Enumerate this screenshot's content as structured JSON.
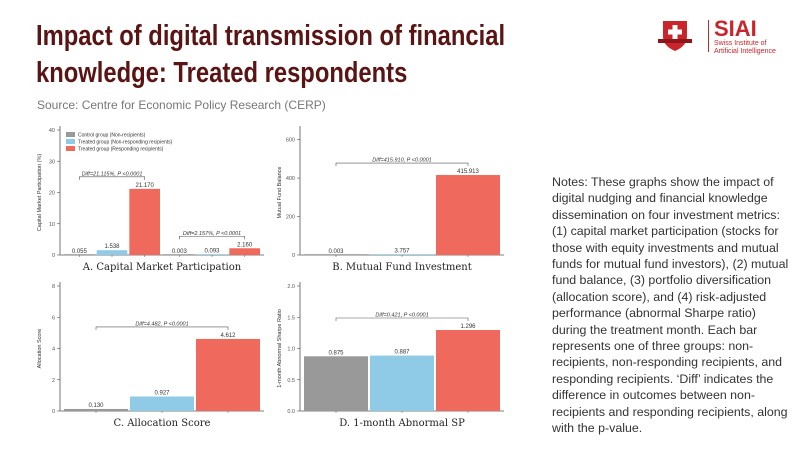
{
  "header": {
    "title": "Impact of digital transmission of financial knowledge: Treated respondents",
    "source": "Source: Centre for Economic Policy Research (CERP)"
  },
  "logo": {
    "brand": "SIAI",
    "subtitle": "Swiss Institute of Artificial Intelligence",
    "color": "#c9252b"
  },
  "notes": "Notes: These graphs show the impact of digital nudging and financial knowledge dissemination on four investment metrics: (1) capital market participation (stocks for those with equity investments and mutual funds for mutual fund investors), (2) mutual fund balance, (3) portfolio diversification (allocation score), and (4) risk-adjusted performance (abnormal Sharpe ratio) during the treatment month. Each bar represents one of three groups: non-recipients, non-responding recipients, and responding recipients. ‘Diff’ indicates the difference in outcomes between non-recipients and responding recipients, along with the p-value.",
  "colors": {
    "control": "#999999",
    "nonresponding": "#8fcbe6",
    "responding": "#ef6a5c",
    "title": "#5a1414"
  },
  "legend": [
    "Control group (Non-recipients)",
    "Treated group (Non-responding recipients)",
    "Treated group (Responding recipients)"
  ],
  "chart_data": [
    {
      "type": "bar",
      "title": "A. Capital Market Participation",
      "ylabel": "Capital Market Participation (%)",
      "ylim": [
        0,
        40
      ],
      "yticks": [
        "0",
        "10",
        "20",
        "30",
        "40"
      ],
      "legend": "top-left",
      "groups": [
        {
          "values": [
            0.055,
            1.538,
            21.17
          ],
          "labels": [
            "0.055",
            "1.538",
            "21.170"
          ],
          "diff": "Diff=21.115%, P <0.0001"
        },
        {
          "values": [
            0.003,
            0.093,
            2.16
          ],
          "labels": [
            "0.003",
            "0.093",
            "2.160"
          ],
          "diff": "Diff=2.157%, P <0.0001"
        }
      ]
    },
    {
      "type": "bar",
      "title": "B. Mutual Fund Investment",
      "ylabel": "Mutual Fund Balance",
      "ylim": [
        0,
        650
      ],
      "yticks": [
        "0",
        "200",
        "400",
        "600"
      ],
      "groups": [
        {
          "values": [
            0.003,
            3.757,
            415.913
          ],
          "labels": [
            "0.003",
            "3.757",
            "415.913"
          ],
          "diff": "Diff=415.910, P <0.0001"
        }
      ]
    },
    {
      "type": "bar",
      "title": "C. Allocation Score",
      "ylabel": "Allocation Score",
      "ylim": [
        0,
        8
      ],
      "yticks": [
        "0",
        "2",
        "4",
        "6",
        "8"
      ],
      "groups": [
        {
          "values": [
            0.13,
            0.927,
            4.612
          ],
          "labels": [
            "0.130",
            "0.927",
            "4.612"
          ],
          "diff": "Diff=4.482, P <0.0001"
        }
      ]
    },
    {
      "type": "bar",
      "title": "D. 1-month Abnormal SP",
      "ylabel": "1-month Abnormal Sharpe Ratio",
      "ylim": [
        0,
        2.0
      ],
      "yticks": [
        "0.0",
        "0.5",
        "1.0",
        "1.5",
        "2.0"
      ],
      "groups": [
        {
          "values": [
            0.875,
            0.887,
            1.296
          ],
          "labels": [
            "0.875",
            "0.887",
            "1.296"
          ],
          "diff": "Diff=0.421, P <0.0001"
        }
      ]
    }
  ]
}
